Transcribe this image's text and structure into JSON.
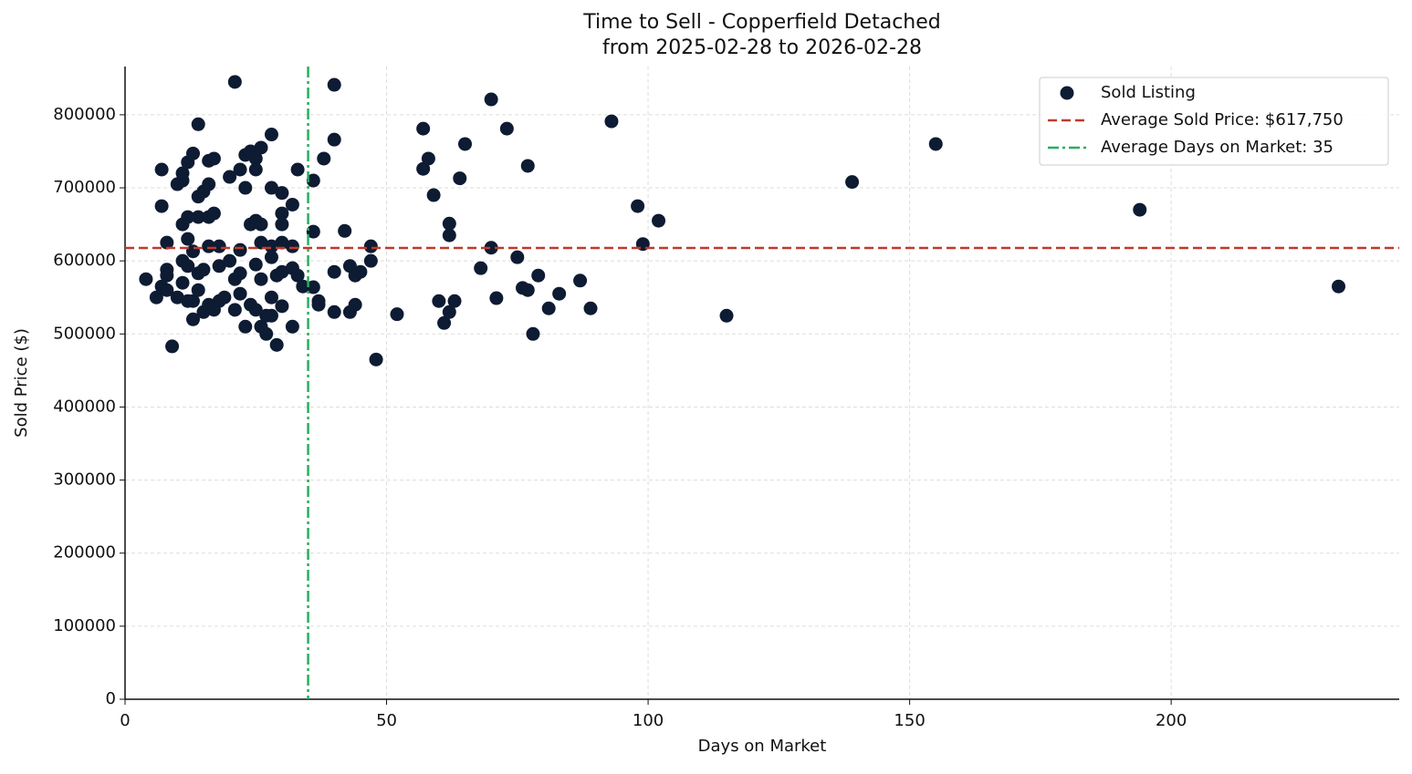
{
  "chart_data": {
    "type": "scatter",
    "title": "Time to Sell - Copperfield Detached",
    "subtitle": "from 2025-02-28 to 2026-02-28",
    "x_label": "Days on Market",
    "y_label": "Sold Price ($)",
    "xlim": [
      0,
      243.6
    ],
    "ylim": [
      0,
      866000
    ],
    "xticks": [
      0,
      50,
      100,
      150,
      200
    ],
    "yticks": [
      0,
      100000,
      200000,
      300000,
      400000,
      500000,
      600000,
      700000,
      800000
    ],
    "grid": true,
    "legend": "upper right",
    "series": [
      {
        "name": "Sold Listing",
        "color": "#0d1b33",
        "x": [
          4,
          6,
          7,
          7,
          7,
          8,
          8,
          8,
          8,
          9,
          10,
          10,
          11,
          11,
          11,
          11,
          11,
          12,
          12,
          12,
          12,
          12,
          13,
          13,
          13,
          13,
          14,
          14,
          14,
          14,
          14,
          15,
          15,
          15,
          16,
          16,
          16,
          16,
          16,
          17,
          17,
          17,
          18,
          18,
          18,
          19,
          20,
          20,
          21,
          21,
          21,
          22,
          22,
          22,
          22,
          23,
          23,
          23,
          24,
          24,
          24,
          25,
          25,
          25,
          25,
          25,
          26,
          26,
          26,
          26,
          26,
          27,
          27,
          28,
          28,
          28,
          28,
          28,
          28,
          29,
          29,
          30,
          30,
          30,
          30,
          30,
          30,
          32,
          32,
          32,
          32,
          33,
          33,
          34,
          36,
          36,
          36,
          37,
          37,
          38,
          40,
          40,
          40,
          40,
          42,
          43,
          43,
          44,
          44,
          45,
          47,
          47,
          48,
          52,
          57,
          57,
          58,
          59,
          60,
          61,
          62,
          62,
          62,
          63,
          64,
          65,
          68,
          70,
          70,
          71,
          73,
          75,
          76,
          77,
          77,
          78,
          79,
          81,
          83,
          87,
          89,
          93,
          98,
          99,
          102,
          115,
          139,
          155,
          194,
          232
        ],
        "values": [
          575000,
          550000,
          725000,
          675000,
          565000,
          625000,
          588000,
          580000,
          560000,
          483000,
          705000,
          550000,
          720000,
          710000,
          650000,
          600000,
          570000,
          735000,
          660000,
          630000,
          593000,
          545000,
          747000,
          613000,
          520000,
          545000,
          787000,
          688000,
          660000,
          583000,
          560000,
          695000,
          588000,
          530000,
          737000,
          705000,
          660000,
          620000,
          540000,
          740000,
          665000,
          533000,
          593000,
          620000,
          545000,
          550000,
          715000,
          600000,
          845000,
          533000,
          575000,
          725000,
          615000,
          583000,
          555000,
          745000,
          700000,
          510000,
          750000,
          650000,
          540000,
          740000,
          725000,
          655000,
          595000,
          533000,
          755000,
          650000,
          625000,
          575000,
          510000,
          500000,
          525000,
          773000,
          700000,
          620000,
          605000,
          550000,
          525000,
          485000,
          580000,
          693000,
          665000,
          650000,
          625000,
          585000,
          538000,
          677000,
          620000,
          590000,
          510000,
          725000,
          580000,
          565000,
          710000,
          640000,
          564000,
          545000,
          540000,
          740000,
          841000,
          766000,
          585000,
          530000,
          641000,
          593000,
          530000,
          580000,
          540000,
          585000,
          620000,
          600000,
          465000,
          527000,
          781000,
          726000,
          740000,
          690000,
          545000,
          515000,
          651000,
          635000,
          530000,
          545000,
          713000,
          760000,
          590000,
          821000,
          618000,
          549000,
          781000,
          605000,
          563000,
          730000,
          560000,
          500000,
          580000,
          535000,
          555000,
          573000,
          535000,
          791000,
          675000,
          623000,
          655000,
          525000,
          708000,
          760000,
          670000,
          565000
        ]
      }
    ],
    "hline": {
      "value": 617750,
      "label": "Average Sold Price: $617,750",
      "color": "#c0392b"
    },
    "vline": {
      "value": 35,
      "label": "Average Days on Market: 35",
      "color": "#27ae60"
    }
  }
}
